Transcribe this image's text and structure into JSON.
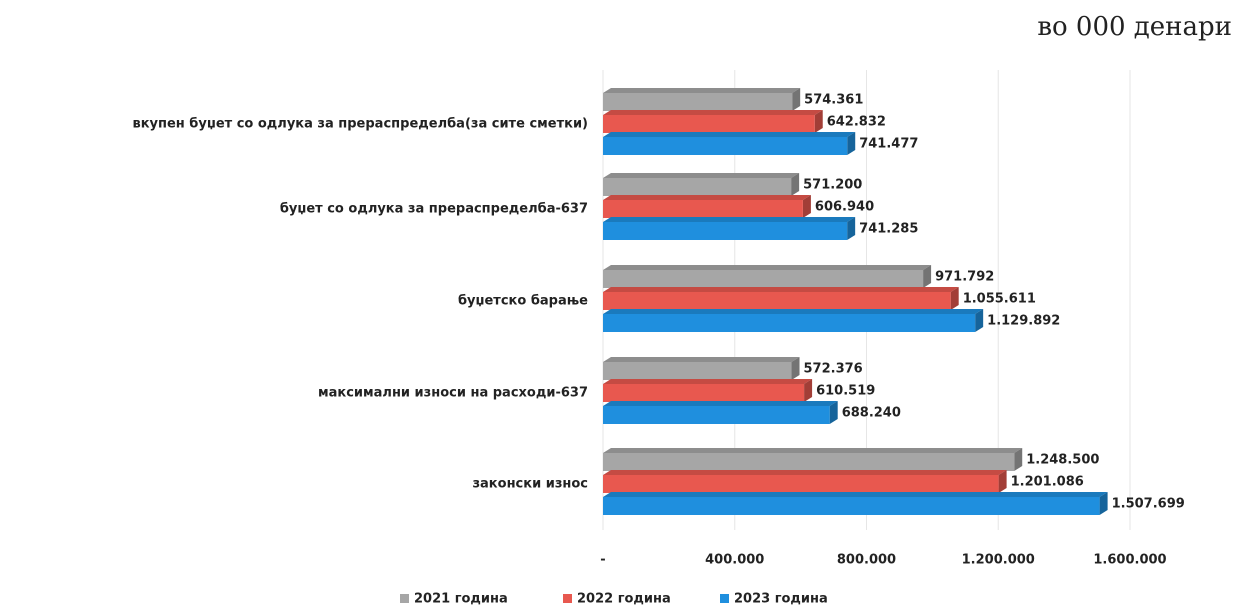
{
  "chart_data": {
    "type": "bar",
    "orientation": "horizontal",
    "subtitle": "во 000 денари",
    "categories": [
      "вкупен буџет со одлука за прераспределба(за сите сметки)",
      "буџет со одлука за прераспределба-637",
      "буџетско барање",
      "максимални износи на расходи-637",
      "законски износ"
    ],
    "series": [
      {
        "name": "2021 година",
        "color": "#a6a6a6",
        "values": [
          574361,
          571200,
          971792,
          572376,
          1248500
        ],
        "value_labels": [
          "574.361",
          "571.200",
          "971.792",
          "572.376",
          "1.248.500"
        ]
      },
      {
        "name": "2022 година",
        "color": "#e8584f",
        "values": [
          642832,
          606940,
          1055611,
          610519,
          1201086
        ],
        "value_labels": [
          "642.832",
          "606.940",
          "1.055.611",
          "610.519",
          "1.201.086"
        ]
      },
      {
        "name": "2023 година",
        "color": "#1f8fde",
        "values": [
          741477,
          741285,
          1129892,
          688240,
          1507699
        ],
        "value_labels": [
          "741.477",
          "741.285",
          "1.129.892",
          "688.240",
          "1.507.699"
        ]
      }
    ],
    "xlim": [
      0,
      1600000
    ],
    "xticks": [
      {
        "value": 0,
        "label": "-"
      },
      {
        "value": 400000,
        "label": "400.000"
      },
      {
        "value": 800000,
        "label": "800.000"
      },
      {
        "value": 1200000,
        "label": "1.200.000"
      },
      {
        "value": 1600000,
        "label": "1.600.000"
      }
    ],
    "grid": true,
    "legend": "bottom"
  }
}
